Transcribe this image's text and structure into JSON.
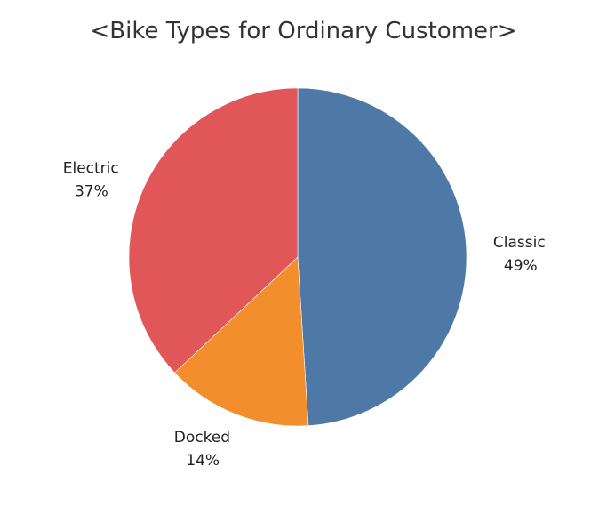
{
  "chart_data": {
    "type": "pie",
    "title": "<Bike Types for Ordinary Customer>",
    "categories": [
      "Classic",
      "Docked",
      "Electric"
    ],
    "values": [
      49,
      14,
      37
    ],
    "value_labels": [
      "49%",
      "14%",
      "37%"
    ],
    "colors": [
      "#4e79a7",
      "#f28e2b",
      "#e15759"
    ],
    "start": "12 o'clock",
    "direction": "clockwise"
  }
}
